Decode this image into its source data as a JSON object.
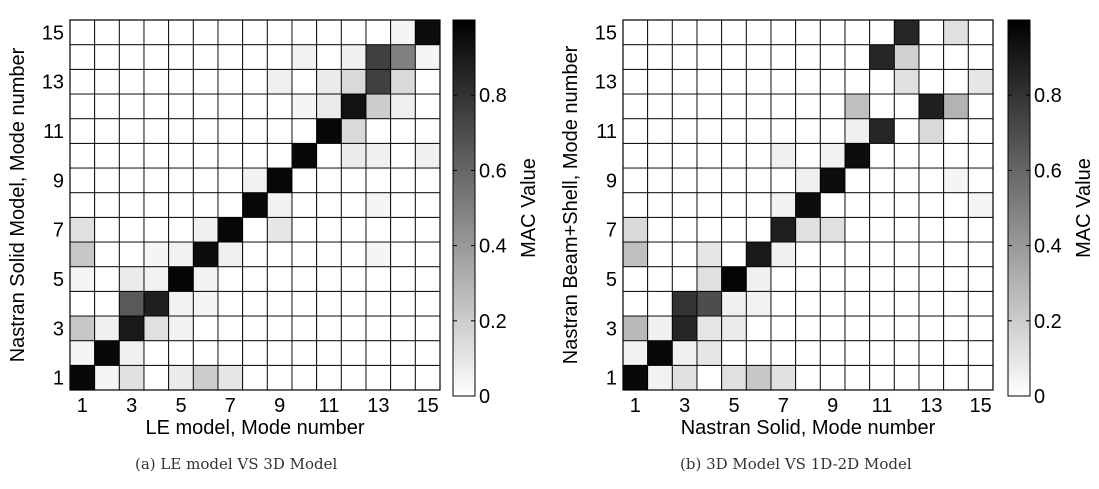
{
  "captions": {
    "a": "(a) LE model VS 3D Model",
    "b": "(b) 3D Model VS 1D-2D Model"
  },
  "colorbar": {
    "label": "MAC Value",
    "ticks": [
      "0",
      "0.2",
      "0.4",
      "0.6",
      "0.8"
    ],
    "tick_values": [
      0,
      0.2,
      0.4,
      0.6,
      0.8
    ],
    "range": [
      0,
      1
    ],
    "colormap": [
      "#ffffff",
      "#000000"
    ]
  },
  "chart_data": [
    {
      "type": "heatmap",
      "title": "",
      "xlabel": "LE model, Mode number",
      "ylabel": "Nastran Solid Model, Mode number",
      "xticks": [
        "1",
        "3",
        "5",
        "7",
        "9",
        "11",
        "13",
        "15"
      ],
      "yticks": [
        "1",
        "3",
        "5",
        "7",
        "9",
        "11",
        "13",
        "15"
      ],
      "n": 15,
      "clim": [
        0,
        1
      ],
      "cells": [
        [
          1,
          1,
          0.97
        ],
        [
          2,
          2,
          0.97
        ],
        [
          3,
          3,
          0.9
        ],
        [
          4,
          4,
          0.88
        ],
        [
          5,
          5,
          0.98
        ],
        [
          6,
          6,
          0.95
        ],
        [
          7,
          7,
          0.97
        ],
        [
          8,
          8,
          0.97
        ],
        [
          9,
          9,
          0.97
        ],
        [
          10,
          10,
          0.97
        ],
        [
          11,
          11,
          0.97
        ],
        [
          12,
          12,
          0.93
        ],
        [
          13,
          13,
          0.75
        ],
        [
          14,
          14,
          0.5
        ],
        [
          15,
          15,
          0.95
        ],
        [
          3,
          4,
          0.65
        ],
        [
          4,
          3,
          0.12
        ],
        [
          13,
          14,
          0.75
        ],
        [
          14,
          13,
          0.15
        ],
        [
          12,
          13,
          0.15
        ],
        [
          13,
          12,
          0.2
        ],
        [
          1,
          3,
          0.22
        ],
        [
          1,
          6,
          0.22
        ],
        [
          1,
          7,
          0.12
        ],
        [
          3,
          1,
          0.12
        ],
        [
          5,
          1,
          0.08
        ],
        [
          6,
          1,
          0.2
        ],
        [
          7,
          1,
          0.1
        ],
        [
          1,
          5,
          0.04
        ],
        [
          1,
          2,
          0.04
        ],
        [
          2,
          1,
          0.04
        ],
        [
          3,
          5,
          0.08
        ],
        [
          4,
          5,
          0.05
        ],
        [
          5,
          4,
          0.05
        ],
        [
          5,
          3,
          0.05
        ],
        [
          4,
          6,
          0.04
        ],
        [
          6,
          4,
          0.04
        ],
        [
          6,
          5,
          0.05
        ],
        [
          5,
          6,
          0.05
        ],
        [
          7,
          6,
          0.06
        ],
        [
          6,
          7,
          0.06
        ],
        [
          8,
          9,
          0.05
        ],
        [
          9,
          7,
          0.1
        ],
        [
          9,
          8,
          0.05
        ],
        [
          9,
          13,
          0.06
        ],
        [
          10,
          12,
          0.04
        ],
        [
          10,
          14,
          0.05
        ],
        [
          11,
          12,
          0.08
        ],
        [
          12,
          11,
          0.15
        ],
        [
          12,
          10,
          0.08
        ],
        [
          12,
          12,
          0.93
        ],
        [
          12,
          14,
          0.06
        ],
        [
          11,
          13,
          0.08
        ],
        [
          13,
          10,
          0.06
        ],
        [
          14,
          12,
          0.06
        ],
        [
          15,
          14,
          0.04
        ],
        [
          14,
          15,
          0.04
        ],
        [
          2,
          3,
          0.06
        ],
        [
          3,
          2,
          0.06
        ],
        [
          13,
          6,
          0.04
        ],
        [
          13,
          8,
          0.04
        ],
        [
          15,
          10,
          0.06
        ]
      ]
    },
    {
      "type": "heatmap",
      "title": "",
      "xlabel": "Nastran Solid, Mode number",
      "ylabel": "Nastran Beam+Shell, Mode number",
      "xticks": [
        "1",
        "3",
        "5",
        "7",
        "9",
        "11",
        "13",
        "15"
      ],
      "yticks": [
        "1",
        "3",
        "5",
        "7",
        "9",
        "11",
        "13",
        "15"
      ],
      "n": 15,
      "clim": [
        0,
        1
      ],
      "cells": [
        [
          1,
          1,
          0.97
        ],
        [
          2,
          2,
          0.97
        ],
        [
          3,
          3,
          0.85
        ],
        [
          4,
          4,
          0.7
        ],
        [
          5,
          5,
          0.98
        ],
        [
          6,
          6,
          0.9
        ],
        [
          7,
          7,
          0.88
        ],
        [
          8,
          8,
          0.95
        ],
        [
          9,
          9,
          0.95
        ],
        [
          10,
          10,
          0.95
        ],
        [
          11,
          11,
          0.85
        ],
        [
          11,
          14,
          0.85
        ],
        [
          12,
          15,
          0.85
        ],
        [
          13,
          12,
          0.88
        ],
        [
          12,
          14,
          0.18
        ],
        [
          3,
          4,
          0.8
        ],
        [
          4,
          3,
          0.1
        ],
        [
          4,
          2,
          0.1
        ],
        [
          1,
          3,
          0.28
        ],
        [
          1,
          6,
          0.25
        ],
        [
          1,
          7,
          0.15
        ],
        [
          6,
          1,
          0.22
        ],
        [
          5,
          1,
          0.12
        ],
        [
          7,
          1,
          0.12
        ],
        [
          3,
          1,
          0.12
        ],
        [
          4,
          5,
          0.12
        ],
        [
          4,
          6,
          0.1
        ],
        [
          5,
          4,
          0.06
        ],
        [
          5,
          3,
          0.08
        ],
        [
          6,
          5,
          0.06
        ],
        [
          6,
          4,
          0.05
        ],
        [
          7,
          6,
          0.06
        ],
        [
          8,
          7,
          0.12
        ],
        [
          9,
          7,
          0.12
        ],
        [
          7,
          8,
          0.05
        ],
        [
          8,
          9,
          0.06
        ],
        [
          10,
          12,
          0.25
        ],
        [
          10,
          11,
          0.06
        ],
        [
          12,
          13,
          0.12
        ],
        [
          13,
          12,
          0.88
        ],
        [
          14,
          12,
          0.3
        ],
        [
          13,
          11,
          0.15
        ],
        [
          14,
          15,
          0.12
        ],
        [
          15,
          13,
          0.1
        ],
        [
          15,
          8,
          0.04
        ],
        [
          14,
          9,
          0.04
        ],
        [
          2,
          1,
          0.05
        ],
        [
          1,
          2,
          0.05
        ],
        [
          3,
          2,
          0.06
        ],
        [
          2,
          3,
          0.06
        ],
        [
          7,
          10,
          0.06
        ],
        [
          9,
          10,
          0.05
        ]
      ]
    }
  ]
}
